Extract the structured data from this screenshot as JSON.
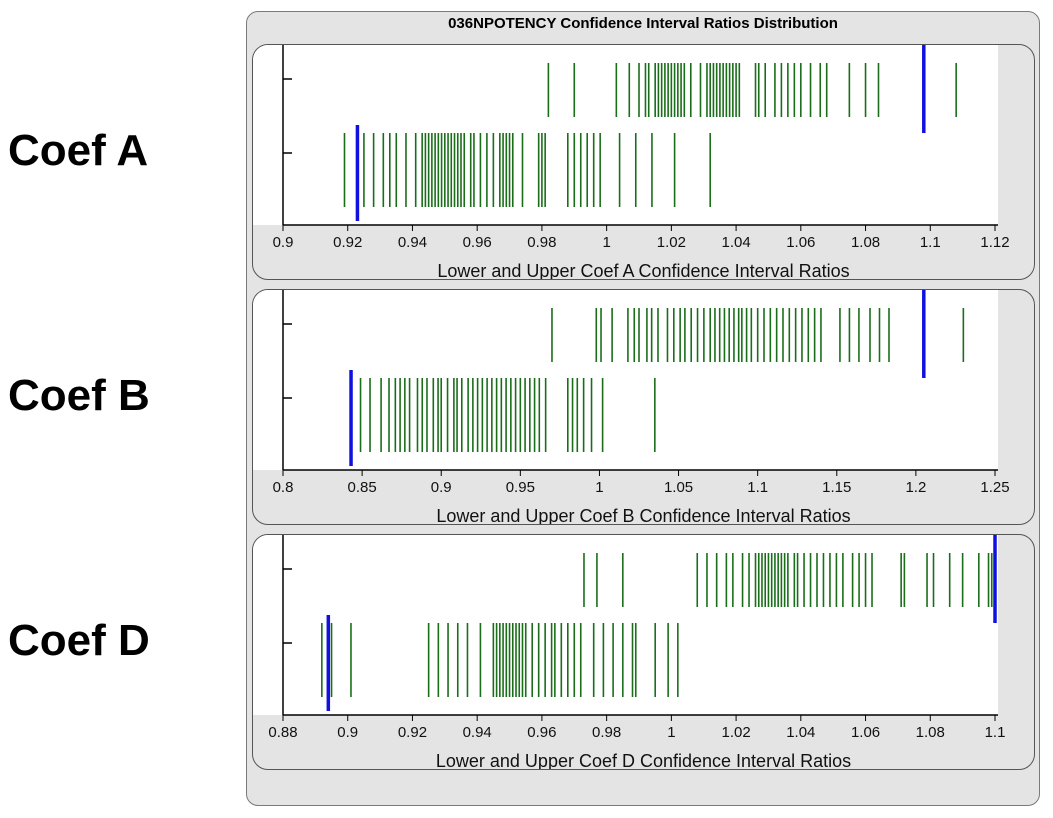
{
  "title": "036NPOTENCY Confidence Interval Ratios Distribution",
  "row_labels": [
    "Coef A",
    "Coef B",
    "Coef D"
  ],
  "colors": {
    "tick": "#1a6e1a",
    "bound": "#1010e0",
    "plot_bg": "#ffffff",
    "frame_bg": "#e4e4e4"
  },
  "chart_data": [
    {
      "type": "scatter",
      "title": "036NPOTENCY Confidence Interval Ratios Distribution",
      "xlabel": "Lower and Upper Coef A Confidence Interval Ratios",
      "ylabel": "",
      "xlim": [
        0.9,
        1.12
      ],
      "xticks": [
        "0.9",
        "0.92",
        "0.94",
        "0.96",
        "0.98",
        "1",
        "1.02",
        "1.04",
        "1.06",
        "1.08",
        "1.1",
        "1.12"
      ],
      "grid": false,
      "series": [
        {
          "row": "upper",
          "marker": "vertical-tick",
          "x": [
            0.982,
            0.99,
            1.003,
            1.007,
            1.01,
            1.012,
            1.013,
            1.015,
            1.016,
            1.017,
            1.018,
            1.019,
            1.02,
            1.021,
            1.022,
            1.023,
            1.024,
            1.026,
            1.029,
            1.031,
            1.032,
            1.033,
            1.034,
            1.035,
            1.036,
            1.037,
            1.038,
            1.039,
            1.04,
            1.041,
            1.046,
            1.047,
            1.049,
            1.052,
            1.054,
            1.056,
            1.058,
            1.06,
            1.063,
            1.066,
            1.068,
            1.075,
            1.08,
            1.084,
            1.108
          ]
        },
        {
          "row": "lower",
          "marker": "vertical-tick",
          "x": [
            0.919,
            0.925,
            0.928,
            0.931,
            0.933,
            0.935,
            0.938,
            0.941,
            0.943,
            0.944,
            0.945,
            0.946,
            0.947,
            0.948,
            0.949,
            0.95,
            0.951,
            0.952,
            0.953,
            0.954,
            0.955,
            0.956,
            0.958,
            0.959,
            0.961,
            0.963,
            0.965,
            0.967,
            0.968,
            0.969,
            0.97,
            0.971,
            0.974,
            0.979,
            0.98,
            0.981,
            0.988,
            0.99,
            0.992,
            0.994,
            0.996,
            0.998,
            1.004,
            1.009,
            1.014,
            1.021,
            1.032
          ]
        },
        {
          "row": "upper",
          "marker": "bound-line",
          "x": [
            1.098
          ]
        },
        {
          "row": "lower",
          "marker": "bound-line",
          "x": [
            0.923
          ]
        }
      ]
    },
    {
      "type": "scatter",
      "xlabel": "Lower and Upper Coef B Confidence Interval Ratios",
      "ylabel": "",
      "xlim": [
        0.8,
        1.25
      ],
      "xticks": [
        "0.8",
        "0.85",
        "0.9",
        "0.95",
        "1",
        "1.05",
        "1.1",
        "1.15",
        "1.2",
        "1.25"
      ],
      "grid": false,
      "series": [
        {
          "row": "upper",
          "marker": "vertical-tick",
          "x": [
            0.97,
            0.998,
            1.001,
            1.008,
            1.018,
            1.022,
            1.025,
            1.03,
            1.033,
            1.037,
            1.043,
            1.047,
            1.051,
            1.054,
            1.058,
            1.062,
            1.066,
            1.07,
            1.073,
            1.076,
            1.079,
            1.082,
            1.085,
            1.088,
            1.09,
            1.093,
            1.096,
            1.1,
            1.104,
            1.108,
            1.112,
            1.116,
            1.12,
            1.124,
            1.128,
            1.132,
            1.136,
            1.14,
            1.152,
            1.158,
            1.164,
            1.171,
            1.177,
            1.183,
            1.23
          ]
        },
        {
          "row": "lower",
          "marker": "vertical-tick",
          "x": [
            0.849,
            0.855,
            0.862,
            0.867,
            0.871,
            0.874,
            0.877,
            0.88,
            0.885,
            0.888,
            0.891,
            0.895,
            0.898,
            0.9,
            0.904,
            0.908,
            0.91,
            0.913,
            0.917,
            0.92,
            0.923,
            0.926,
            0.929,
            0.932,
            0.935,
            0.938,
            0.941,
            0.944,
            0.947,
            0.95,
            0.953,
            0.956,
            0.959,
            0.962,
            0.966,
            0.98,
            0.983,
            0.986,
            0.99,
            0.995,
            1.002,
            1.035
          ]
        },
        {
          "row": "upper",
          "marker": "bound-line",
          "x": [
            1.205
          ]
        },
        {
          "row": "lower",
          "marker": "bound-line",
          "x": [
            0.843
          ]
        }
      ]
    },
    {
      "type": "scatter",
      "xlabel": "Lower and Upper Coef D Confidence Interval Ratios",
      "ylabel": "",
      "xlim": [
        0.88,
        1.1
      ],
      "xticks": [
        "0.88",
        "0.9",
        "0.92",
        "0.94",
        "0.96",
        "0.98",
        "1",
        "1.02",
        "1.04",
        "1.06",
        "1.08",
        "1.1"
      ],
      "grid": false,
      "series": [
        {
          "row": "upper",
          "marker": "vertical-tick",
          "x": [
            0.973,
            0.977,
            0.985,
            1.008,
            1.011,
            1.014,
            1.017,
            1.019,
            1.022,
            1.024,
            1.026,
            1.027,
            1.028,
            1.029,
            1.03,
            1.031,
            1.032,
            1.033,
            1.034,
            1.035,
            1.036,
            1.038,
            1.039,
            1.041,
            1.043,
            1.045,
            1.047,
            1.049,
            1.051,
            1.053,
            1.056,
            1.058,
            1.06,
            1.062,
            1.071,
            1.072,
            1.079,
            1.081,
            1.086,
            1.09,
            1.095,
            1.098,
            1.099
          ]
        },
        {
          "row": "lower",
          "marker": "vertical-tick",
          "x": [
            0.892,
            0.895,
            0.901,
            0.925,
            0.928,
            0.931,
            0.934,
            0.937,
            0.941,
            0.945,
            0.946,
            0.947,
            0.948,
            0.949,
            0.95,
            0.951,
            0.952,
            0.953,
            0.954,
            0.955,
            0.957,
            0.959,
            0.961,
            0.963,
            0.964,
            0.966,
            0.968,
            0.97,
            0.972,
            0.976,
            0.979,
            0.982,
            0.985,
            0.988,
            0.989,
            0.995,
            0.999,
            1.002
          ]
        },
        {
          "row": "upper",
          "marker": "bound-line",
          "x": [
            1.1
          ]
        },
        {
          "row": "lower",
          "marker": "bound-line",
          "x": [
            0.894
          ]
        }
      ]
    }
  ]
}
